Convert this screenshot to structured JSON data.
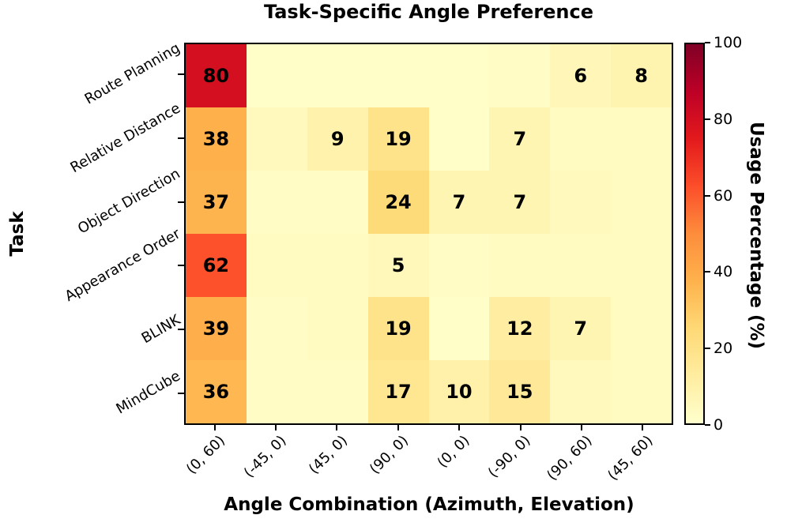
{
  "title": "Task-Specific Angle Preference",
  "chart_data": {
    "type": "heatmap",
    "title": "Task-Specific Angle Preference",
    "xlabel": "Angle Combination (Azimuth, Elevation)",
    "ylabel": "Task",
    "x_categories": [
      "(0, 60)",
      "(-45, 0)",
      "(45, 0)",
      "(90, 0)",
      "(0, 0)",
      "(-90, 0)",
      "(90, 60)",
      "(45, 60)"
    ],
    "y_categories": [
      "Route Planning",
      "Relative Distance",
      "Object Direction",
      "Appearance Order",
      "BLINK",
      "MindCube"
    ],
    "values": [
      [
        80,
        1,
        1,
        1,
        1,
        2,
        6,
        8
      ],
      [
        38,
        4,
        9,
        19,
        1,
        7,
        3,
        3
      ],
      [
        37,
        2,
        2,
        24,
        7,
        7,
        4,
        3
      ],
      [
        62,
        3,
        3,
        5,
        2,
        3,
        3,
        3
      ],
      [
        39,
        2,
        3,
        19,
        1,
        12,
        7,
        3
      ],
      [
        36,
        2,
        2,
        17,
        10,
        15,
        4,
        3
      ]
    ],
    "annotated_values": [
      80,
      38,
      9,
      19,
      7,
      37,
      24,
      7,
      7,
      62,
      5,
      39,
      19,
      12,
      7,
      36,
      17,
      10,
      15,
      6,
      8
    ],
    "annotation_threshold": 5,
    "value_range": [
      0,
      100
    ],
    "grid": false,
    "colorbar": {
      "label": "Usage Percentage (%)",
      "ticks": [
        0,
        20,
        40,
        60,
        80,
        100
      ],
      "position": "right"
    }
  },
  "colors": {
    "background": "#ffffff",
    "axis": "#000000",
    "annotation_text": "#000000",
    "colormap_name": "YlOrRd",
    "colormap_stops": [
      "#ffffcc",
      "#ffeda0",
      "#fed976",
      "#feb24c",
      "#fd8d3c",
      "#fc4e2a",
      "#e31a1c",
      "#bd0026",
      "#800026"
    ]
  }
}
